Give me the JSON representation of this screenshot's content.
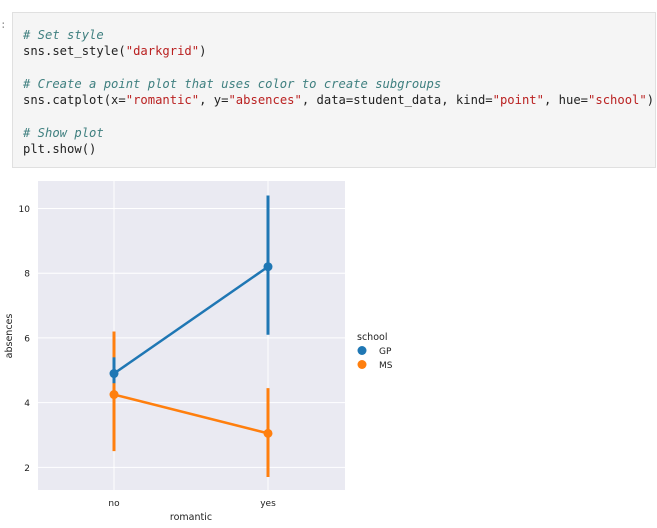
{
  "code": {
    "lines": [
      [
        {
          "t": "comment",
          "s": "# Set style"
        }
      ],
      [
        {
          "t": "plain",
          "s": "sns.set_style("
        },
        {
          "t": "str",
          "s": "\"darkgrid\""
        },
        {
          "t": "plain",
          "s": ")"
        }
      ],
      [],
      [
        {
          "t": "comment",
          "s": "# Create a point plot that uses color to create subgroups"
        }
      ],
      [
        {
          "t": "plain",
          "s": "sns.catplot(x="
        },
        {
          "t": "str",
          "s": "\"romantic\""
        },
        {
          "t": "plain",
          "s": ", y="
        },
        {
          "t": "str",
          "s": "\"absences\""
        },
        {
          "t": "plain",
          "s": ", data=student_data, kind="
        },
        {
          "t": "str",
          "s": "\"point\""
        },
        {
          "t": "plain",
          "s": ", hue="
        },
        {
          "t": "str",
          "s": "\"school\""
        },
        {
          "t": "plain",
          "s": ")"
        }
      ],
      [],
      [
        {
          "t": "comment",
          "s": "# Show plot"
        }
      ],
      [
        {
          "t": "plain",
          "s": "plt.show()"
        }
      ]
    ]
  },
  "colors": {
    "plot_bg": "#eaeaf2",
    "grid": "#ffffff",
    "gp": "#1f77b4",
    "ms": "#ff7f0e"
  },
  "chart_data": {
    "type": "line",
    "style": "darkgrid",
    "categories": [
      "no",
      "yes"
    ],
    "xlabel": "romantic",
    "ylabel": "absences",
    "yticks": [
      2,
      4,
      6,
      8,
      10
    ],
    "ylim": [
      1.3,
      10.85
    ],
    "grid": true,
    "legend_title": "school",
    "legend_placement": "right",
    "series": [
      {
        "name": "GP",
        "values": [
          4.9,
          8.2
        ],
        "ci_low": [
          4.6,
          6.1
        ],
        "ci_high": [
          5.4,
          10.4
        ]
      },
      {
        "name": "MS",
        "values": [
          4.25,
          3.05
        ],
        "ci_low": [
          2.5,
          1.7
        ],
        "ci_high": [
          6.2,
          4.45
        ]
      }
    ]
  }
}
